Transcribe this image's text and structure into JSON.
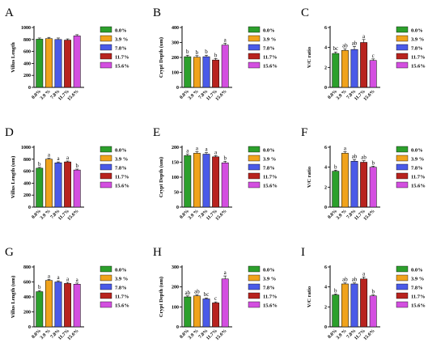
{
  "figure": {
    "legend_labels": [
      "0.0%",
      "3.9 %",
      "7.8%",
      "11.7%",
      "15.6%"
    ],
    "colors": {
      "0.0%": "#2ca02c",
      "3.9 %": "#f0a31c",
      "7.8%": "#4a5ae8",
      "11.7%": "#b8231e",
      "15.6%": "#d34fe0"
    }
  },
  "chart_data": [
    {
      "panel": "A",
      "type": "bar",
      "categories": [
        "0.0%",
        "3.9 %",
        "7.8%",
        "11.7%",
        "15.6%"
      ],
      "values": [
        805,
        815,
        800,
        790,
        860
      ],
      "errors": [
        20,
        20,
        25,
        20,
        20
      ],
      "letters": [
        "",
        "",
        "",
        "",
        ""
      ],
      "ylabel": "Villus Length",
      "ylim": [
        0,
        1000
      ],
      "yticks": [
        0,
        200,
        400,
        600,
        800,
        1000
      ]
    },
    {
      "panel": "B",
      "type": "bar",
      "categories": [
        "0.0%",
        "3.9 %",
        "7.8%",
        "11.7%",
        "15.6%"
      ],
      "values": [
        205,
        202,
        205,
        183,
        283
      ],
      "errors": [
        10,
        10,
        10,
        10,
        12
      ],
      "letters": [
        "b",
        "b",
        "b",
        "b",
        "a"
      ],
      "ylabel": "Crypt Depth (um)",
      "ylim": [
        0,
        400
      ],
      "yticks": [
        0,
        100,
        200,
        300,
        400
      ]
    },
    {
      "panel": "C",
      "type": "bar",
      "categories": [
        "0.0%",
        "3.9 %",
        "7.8%",
        "11.7%",
        "15.6%"
      ],
      "values": [
        3.4,
        3.7,
        3.8,
        4.5,
        2.7
      ],
      "errors": [
        0.15,
        0.15,
        0.3,
        0.3,
        0.15
      ],
      "letters": [
        "bc",
        "ab",
        "ab",
        "a",
        "c"
      ],
      "ylabel": "V/C ratio",
      "ylim": [
        0,
        6
      ],
      "yticks": [
        0,
        2,
        4,
        6
      ]
    },
    {
      "panel": "D",
      "type": "bar",
      "categories": [
        "0.0%",
        "3.9 %",
        "7.8%",
        "11.7%",
        "15.6%"
      ],
      "values": [
        650,
        800,
        740,
        755,
        620
      ],
      "errors": [
        15,
        15,
        15,
        15,
        15
      ],
      "letters": [
        "b",
        "a",
        "a",
        "a",
        "b"
      ],
      "ylabel": "Villus Length (um)",
      "ylim": [
        0,
        1000
      ],
      "yticks": [
        0,
        200,
        400,
        600,
        800,
        1000
      ]
    },
    {
      "panel": "E",
      "type": "bar",
      "categories": [
        "0.0%",
        "3.9 %",
        "7.8%",
        "11.7%",
        "15.6%"
      ],
      "values": [
        172,
        180,
        177,
        168,
        148
      ],
      "errors": [
        5,
        5,
        5,
        4,
        5
      ],
      "letters": [
        "a",
        "a",
        "a",
        "a",
        "b"
      ],
      "ylabel": "Crypt Depth (um)",
      "ylim": [
        0,
        200
      ],
      "yticks": [
        0,
        50,
        100,
        150,
        200
      ]
    },
    {
      "panel": "F",
      "type": "bar",
      "categories": [
        "0.0%",
        "3.9 %",
        "7.8%",
        "11.7%",
        "15.6%"
      ],
      "values": [
        3.6,
        5.4,
        4.6,
        4.5,
        4.0
      ],
      "errors": [
        0.1,
        0.15,
        0.15,
        0.15,
        0.1
      ],
      "letters": [
        "b",
        "a",
        "ab",
        "ab",
        "b"
      ],
      "ylabel": "V/C ratio",
      "ylim": [
        0,
        6
      ],
      "yticks": [
        0,
        2,
        4,
        6
      ]
    },
    {
      "panel": "G",
      "type": "bar",
      "categories": [
        "0.0%",
        "3.9 %",
        "7.8%",
        "11.7%",
        "15.6%"
      ],
      "values": [
        470,
        620,
        600,
        580,
        570
      ],
      "errors": [
        15,
        15,
        15,
        15,
        15
      ],
      "letters": [
        "b",
        "a",
        "a",
        "a",
        "a"
      ],
      "ylabel": "Villus Length (um)",
      "ylim": [
        0,
        800
      ],
      "yticks": [
        0,
        200,
        400,
        600,
        800
      ]
    },
    {
      "panel": "H",
      "type": "bar",
      "categories": [
        "0.0%",
        "3.9 %",
        "7.8%",
        "11.7%",
        "15.6%"
      ],
      "values": [
        150,
        155,
        140,
        120,
        240
      ],
      "errors": [
        5,
        5,
        5,
        5,
        15
      ],
      "letters": [
        "ab",
        "ab",
        "bc",
        "c",
        "a"
      ],
      "ylabel": "Crypt Depth (um)",
      "ylim": [
        0,
        300
      ],
      "yticks": [
        0,
        100,
        200,
        300
      ]
    },
    {
      "panel": "I",
      "type": "bar",
      "categories": [
        "0.0%",
        "3.9 %",
        "7.8%",
        "11.7%",
        "15.6%"
      ],
      "values": [
        3.2,
        4.3,
        4.3,
        4.8,
        3.1
      ],
      "errors": [
        0.1,
        0.1,
        0.1,
        0.2,
        0.1
      ],
      "letters": [
        "b",
        "ab",
        "ab",
        "a",
        "b"
      ],
      "ylabel": "V/C ratio",
      "ylim": [
        0,
        6
      ],
      "yticks": [
        0,
        2,
        4,
        6
      ]
    }
  ]
}
